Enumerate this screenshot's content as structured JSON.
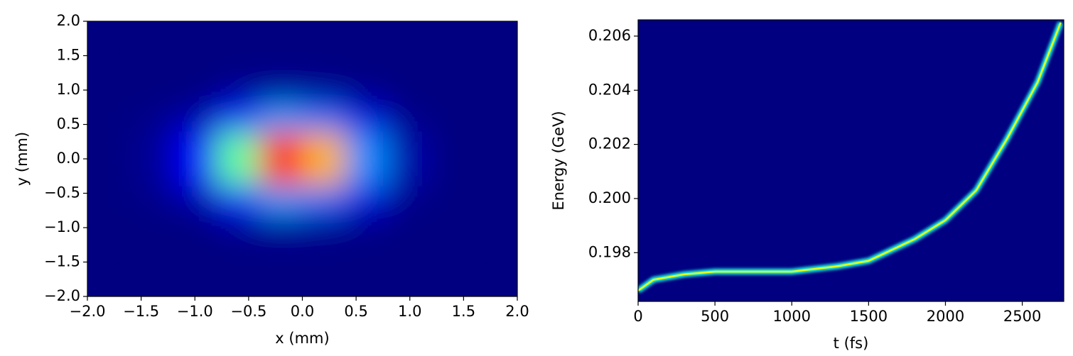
{
  "chart_data": [
    {
      "type": "heatmap",
      "x_label": "x (mm)",
      "y_label": "y (mm)",
      "colormap": "jet",
      "xlim": [
        -2,
        2
      ],
      "ylim": [
        -2,
        2
      ],
      "xticks": [
        {
          "value": -2,
          "label": "−2.0"
        },
        {
          "value": -1.5,
          "label": "−1.5"
        },
        {
          "value": -1,
          "label": "−1.0"
        },
        {
          "value": -0.5,
          "label": "−0.5"
        },
        {
          "value": 0,
          "label": "0.0"
        },
        {
          "value": 0.5,
          "label": "0.5"
        },
        {
          "value": 1,
          "label": "1.0"
        },
        {
          "value": 1.5,
          "label": "1.5"
        },
        {
          "value": 2,
          "label": "2.0"
        }
      ],
      "yticks": [
        {
          "value": -2,
          "label": "−2.0"
        },
        {
          "value": -1.5,
          "label": "−1.5"
        },
        {
          "value": -1,
          "label": "−1.0"
        },
        {
          "value": -0.5,
          "label": "−0.5"
        },
        {
          "value": 0,
          "label": "0.0"
        },
        {
          "value": 0.5,
          "label": "0.5"
        },
        {
          "value": 1,
          "label": "1.0"
        },
        {
          "value": 1.5,
          "label": "1.5"
        },
        {
          "value": 2,
          "label": "2.0"
        }
      ],
      "x": [
        -1.8,
        -1.4,
        -1.0,
        -0.6,
        -0.2,
        0.2,
        0.6,
        1.0,
        1.4,
        1.8
      ],
      "y": [
        -1.8,
        -1.4,
        -1.0,
        -0.6,
        -0.2,
        0.2,
        0.6,
        1.0,
        1.4,
        1.8
      ],
      "z": [
        [
          0,
          0,
          0,
          0,
          0,
          0,
          0,
          0,
          0,
          0
        ],
        [
          0,
          0,
          0,
          0,
          0,
          0,
          0,
          0,
          0,
          0
        ],
        [
          0,
          0,
          0,
          0.02,
          0.03,
          0.02,
          0.01,
          0,
          0,
          0
        ],
        [
          0,
          0.01,
          0.04,
          0.16,
          0.28,
          0.23,
          0.09,
          0.01,
          0,
          0
        ],
        [
          0,
          0.02,
          0.12,
          0.47,
          0.85,
          0.7,
          0.26,
          0.04,
          0,
          0
        ],
        [
          0,
          0.02,
          0.12,
          0.47,
          0.85,
          0.7,
          0.26,
          0.04,
          0,
          0
        ],
        [
          0,
          0.01,
          0.04,
          0.16,
          0.28,
          0.23,
          0.09,
          0.01,
          0,
          0
        ],
        [
          0,
          0,
          0,
          0.02,
          0.03,
          0.02,
          0.01,
          0,
          0,
          0
        ],
        [
          0,
          0,
          0,
          0,
          0,
          0,
          0,
          0,
          0,
          0
        ],
        [
          0,
          0,
          0,
          0,
          0,
          0,
          0,
          0,
          0,
          0
        ]
      ]
    },
    {
      "type": "line",
      "x_label": "t (fs)",
      "y_label": "Energy (GeV)",
      "colormap": "jet",
      "xlim": [
        0,
        2770
      ],
      "ylim": [
        0.1962,
        0.2066
      ],
      "xticks": [
        0,
        500,
        1000,
        1500,
        2000,
        2500
      ],
      "yticks": [
        0.198,
        {
          "value": 0.2,
          "label": "0.200"
        },
        0.202,
        0.204,
        0.206
      ],
      "x": [
        0,
        100,
        300,
        500,
        1000,
        1300,
        1500,
        1800,
        2000,
        2200,
        2400,
        2600,
        2750
      ],
      "y": [
        0.1966,
        0.197,
        0.1972,
        0.1973,
        0.1973,
        0.1975,
        0.1977,
        0.1985,
        0.1992,
        0.2003,
        0.2022,
        0.2043,
        0.2065
      ]
    }
  ]
}
